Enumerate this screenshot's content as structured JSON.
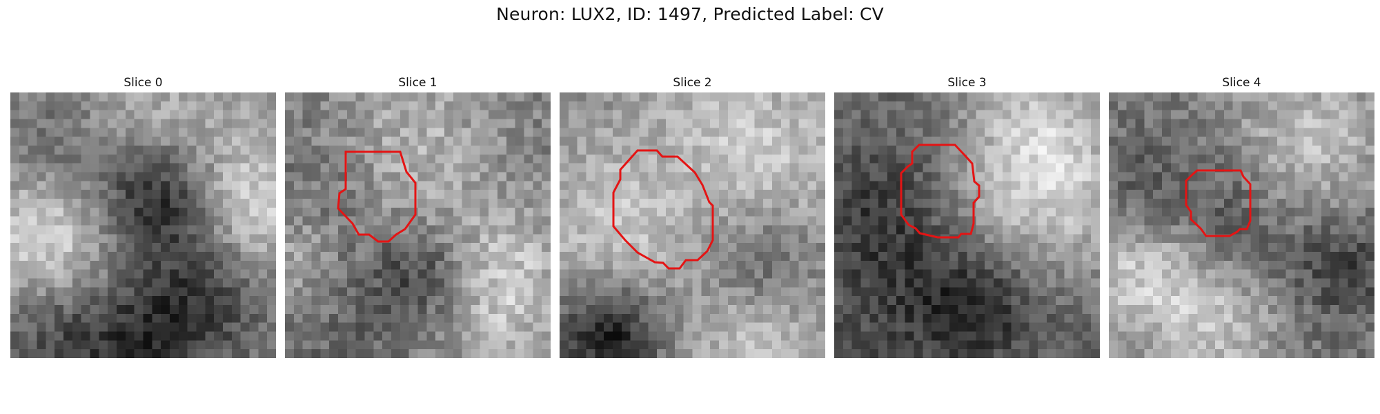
{
  "figure": {
    "title": "Neuron: LUX2, ID: 1497, Predicted Label: CV"
  },
  "slices": [
    {
      "label": "Slice 0",
      "has_outline": false
    },
    {
      "label": "Slice 1",
      "has_outline": true
    },
    {
      "label": "Slice 2",
      "has_outline": true
    },
    {
      "label": "Slice 3",
      "has_outline": true
    },
    {
      "label": "Slice 4",
      "has_outline": true
    }
  ],
  "style": {
    "outline_color": "#e41414",
    "colormap": "gray"
  }
}
